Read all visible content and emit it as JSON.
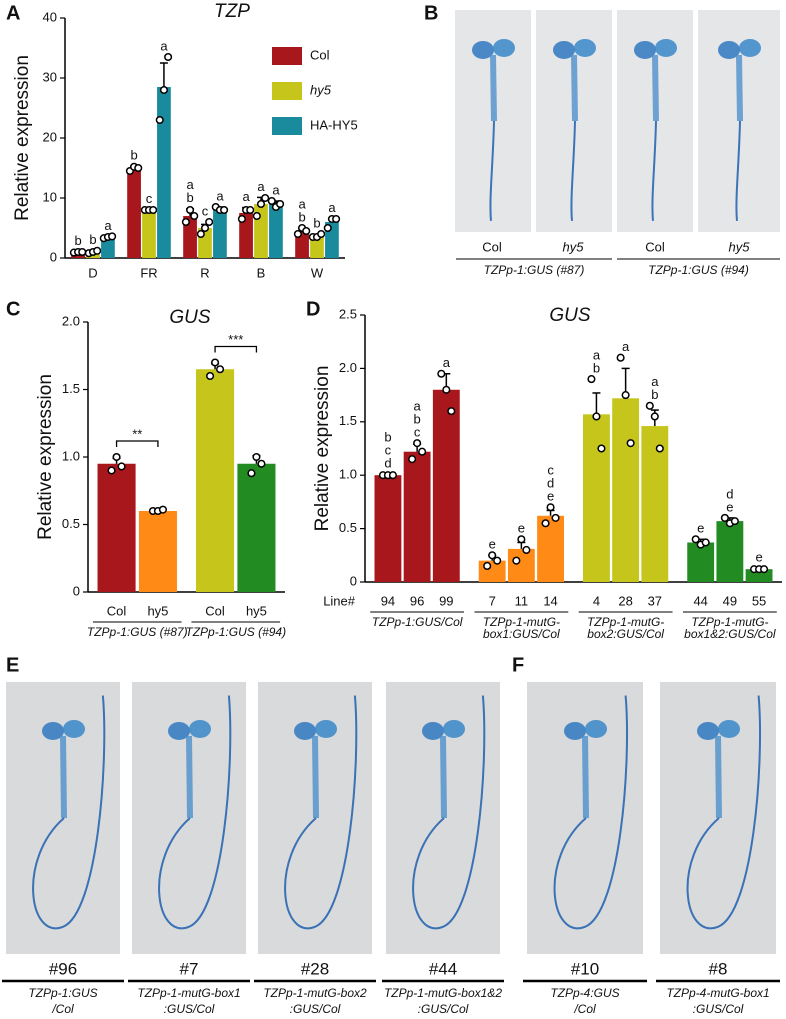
{
  "panel_labels": [
    "A",
    "B",
    "C",
    "D",
    "E",
    "F"
  ],
  "chart_data": [
    {
      "type": "bar",
      "title": "TZP",
      "y_label": "Relative expression",
      "categories": [
        "D",
        "FR",
        "R",
        "B",
        "W"
      ],
      "ylim": [
        0,
        40
      ],
      "yticks": [
        0,
        10,
        20,
        30,
        40
      ],
      "series": [
        {
          "name": "Col",
          "color": "#a8171c",
          "values": [
            1,
            15,
            7,
            7.5,
            4.5
          ],
          "errors": [
            0.1,
            0.3,
            1.2,
            0.9,
            0.4
          ],
          "points": [
            [
              0.9,
              1,
              1
            ],
            [
              14.5,
              15.2,
              15
            ],
            [
              6,
              8,
              7
            ],
            [
              6.5,
              8,
              8
            ],
            [
              4,
              5,
              4.5
            ]
          ],
          "letters": [
            [
              "b"
            ],
            [
              "b"
            ],
            [
              "a",
              "b"
            ],
            [
              "a"
            ],
            [
              "a",
              "b"
            ]
          ]
        },
        {
          "name": "hy5",
          "color": "#c5c51c",
          "values": [
            1,
            8,
            5,
            9,
            3.5
          ],
          "errors": [
            0.1,
            0.1,
            0.6,
            1.1,
            0.2
          ],
          "points": [
            [
              0.8,
              1,
              1.2
            ],
            [
              8,
              8,
              8
            ],
            [
              4,
              5,
              6
            ],
            [
              7,
              9,
              10
            ],
            [
              3.5,
              3.5,
              4
            ]
          ],
          "letters": [
            [
              "b"
            ],
            [
              "c"
            ],
            [
              "c"
            ],
            [
              "a"
            ],
            [
              "b"
            ]
          ]
        },
        {
          "name": "HA-HY5",
          "color": "#1a8b9c",
          "values": [
            3.5,
            28.5,
            8,
            9,
            6
          ],
          "errors": [
            0.1,
            4,
            0.5,
            0.5,
            0.6
          ],
          "points": [
            [
              3.3,
              3.5,
              3.6
            ],
            [
              23,
              28,
              33.5
            ],
            [
              8.5,
              8,
              8
            ],
            [
              9.5,
              8.5,
              9
            ],
            [
              5,
              6.5,
              6.5
            ]
          ],
          "letters": [
            [
              "a"
            ],
            [
              "a"
            ],
            [
              "a"
            ],
            [
              "a"
            ],
            [
              "a"
            ]
          ]
        }
      ]
    },
    {
      "type": "bar",
      "title": "GUS",
      "y_label": "Relative expression",
      "categories": [
        "Col",
        "hy5",
        "Col",
        "hy5"
      ],
      "groups": [
        [
          "TZPp-1:GUS (#87)"
        ],
        [
          "TZPp-1:GUS (#94)"
        ]
      ],
      "ylim": [
        0,
        2.0
      ],
      "yticks": [
        0,
        0.5,
        {
          "value": 1,
          "label": "1.0"
        },
        1.5,
        {
          "value": 2,
          "label": "2.0"
        }
      ],
      "values": [
        0.95,
        0.6,
        1.65,
        0.95
      ],
      "errors": [
        0.04,
        0.01,
        0.04,
        0.06
      ],
      "colors": [
        "#a8171c",
        "#ff8a16",
        "#c5c51c",
        "#228b22"
      ],
      "points": [
        [
          0.9,
          1.0,
          0.93
        ],
        [
          0.6,
          0.6,
          0.61
        ],
        [
          1.6,
          1.7,
          1.65
        ],
        [
          0.88,
          1.0,
          0.95
        ]
      ],
      "brackets": [
        "**",
        "***"
      ]
    },
    {
      "type": "bar",
      "title": "GUS",
      "y_label": "Relative expression",
      "x_label": "Line#",
      "categories": [
        "94",
        "96",
        "99",
        "7",
        "11",
        "14",
        "4",
        "28",
        "37",
        "44",
        "49",
        "55"
      ],
      "groups": [
        [
          "TZPp-1:GUS/Col"
        ],
        [
          "TZPp-1-mutG-",
          "box1:GUS/Col"
        ],
        [
          "TZPp-1-mutG-",
          "box2:GUS/Col"
        ],
        [
          "TZPp-1-mutG-",
          "box1&2:GUS/Col"
        ]
      ],
      "ylim": [
        0,
        2.5
      ],
      "yticks": [
        0,
        0.5,
        {
          "value": 1,
          "label": "1.0"
        },
        1.5,
        {
          "value": 2,
          "label": "2.0"
        },
        2.5
      ],
      "values": [
        1.0,
        1.22,
        1.8,
        0.2,
        0.31,
        0.62,
        1.57,
        1.72,
        1.46,
        0.37,
        0.57,
        0.12
      ],
      "errors": [
        0.01,
        0.07,
        0.15,
        0.05,
        0.06,
        0.05,
        0.2,
        0.28,
        0.15,
        0.03,
        0.03,
        0.01
      ],
      "colors": [
        "#a8171c",
        "#a8171c",
        "#a8171c",
        "#ff8a16",
        "#ff8a16",
        "#ff8a16",
        "#c5c51c",
        "#c5c51c",
        "#c5c51c",
        "#228b22",
        "#228b22",
        "#228b22"
      ],
      "points": [
        [
          1,
          1,
          1
        ],
        [
          1.15,
          1.3,
          1.22
        ],
        [
          1.95,
          1.8,
          1.6
        ],
        [
          0.15,
          0.25,
          0.2
        ],
        [
          0.2,
          0.4,
          0.3
        ],
        [
          0.55,
          0.7,
          0.6
        ],
        [
          1.9,
          1.55,
          1.25
        ],
        [
          2.1,
          1.75,
          1.3
        ],
        [
          1.65,
          1.55,
          1.25
        ],
        [
          0.4,
          0.35,
          0.37
        ],
        [
          0.6,
          0.55,
          0.57
        ],
        [
          0.12,
          0.12,
          0.12
        ]
      ],
      "letters": [
        [
          "b",
          "c",
          "d"
        ],
        [
          "a",
          "b",
          "c"
        ],
        [
          "a"
        ],
        [
          "e"
        ],
        [
          "e"
        ],
        [
          "c",
          "d",
          "e"
        ],
        [
          "a",
          "b"
        ],
        [
          "a"
        ],
        [
          "a",
          "b"
        ],
        [
          "e"
        ],
        [
          "d",
          "e"
        ],
        [
          "e"
        ]
      ]
    }
  ],
  "panel_b": {
    "genotypes": [
      "Col",
      "hy5",
      "Col",
      "hy5"
    ],
    "groups": [
      "TZPp-1:GUS (#87)",
      "TZPp-1:GUS (#94)"
    ]
  },
  "panel_e": [
    {
      "line": "#96",
      "caption": [
        "TZPp-1:GUS",
        "/Col"
      ]
    },
    {
      "line": "#7",
      "caption": [
        "TZPp-1-mutG-box1",
        ":GUS/Col"
      ]
    },
    {
      "line": "#28",
      "caption": [
        "TZPp-1-mutG-box2",
        ":GUS/Col"
      ]
    },
    {
      "line": "#44",
      "caption": [
        "TZPp-1-mutG-box1&2",
        ":GUS/Col"
      ]
    }
  ],
  "panel_f": [
    {
      "line": "#10",
      "caption": [
        "TZPp-4:GUS",
        "/Col"
      ]
    },
    {
      "line": "#8",
      "caption": [
        "TZPp-4-mutG-box1",
        ":GUS/Col"
      ]
    }
  ]
}
